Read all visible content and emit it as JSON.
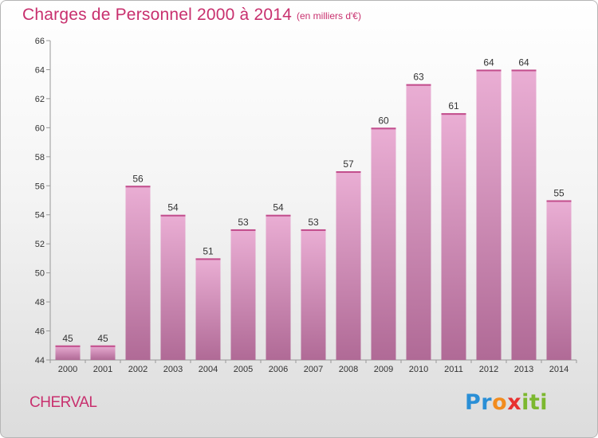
{
  "title": "Charges de Personnel 2000 à 2014",
  "subtitle": "(en milliers d'€)",
  "commune": "CHERVAL",
  "logo": {
    "letters": [
      "P",
      "r",
      "o",
      "x",
      "i",
      "t",
      "i"
    ],
    "colors": [
      "#2a8fd6",
      "#2a8fd6",
      "#f28c1e",
      "#e8312f",
      "#7cb82f",
      "#7cb82f",
      "#7cb82f"
    ]
  },
  "colors": {
    "bar_top": "#eaaed4",
    "bar_bottom": "#b06a96",
    "bar_cap": "#c24d8c",
    "text_accent": "#c8306e"
  },
  "chart_data": {
    "type": "bar",
    "title": "Charges de Personnel 2000 à 2014",
    "subtitle": "(en milliers d'€)",
    "categories": [
      "2000",
      "2001",
      "2002",
      "2003",
      "2004",
      "2005",
      "2006",
      "2007",
      "2008",
      "2009",
      "2010",
      "2011",
      "2012",
      "2013",
      "2014"
    ],
    "values": [
      45,
      45,
      56,
      54,
      51,
      53,
      54,
      53,
      57,
      60,
      63,
      61,
      64,
      64,
      55
    ],
    "ylim": [
      44,
      66
    ],
    "yticks": [
      44,
      46,
      48,
      50,
      52,
      54,
      56,
      58,
      60,
      62,
      64,
      66
    ],
    "grid": false
  }
}
